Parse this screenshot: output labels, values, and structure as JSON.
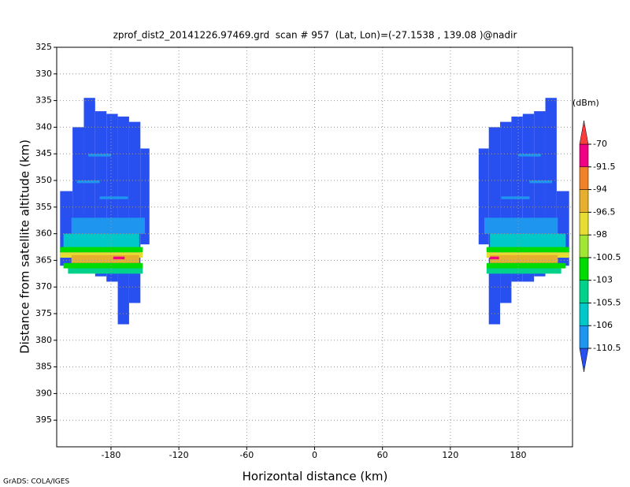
{
  "chart_data": {
    "type": "heatmap",
    "title": "zprof_dist2_20141226.97469.grd  scan # 957  (Lat, Lon)=(-27.1538 , 139.08 )@nadir",
    "xlabel": "Horizontal distance (km)",
    "ylabel": "Distance from satellite altitude (km)",
    "xlim": [
      -228,
      228
    ],
    "ylim": [
      325,
      400
    ],
    "xticks": [
      -180,
      -120,
      -60,
      0,
      60,
      120,
      180
    ],
    "yticks": [
      325,
      330,
      335,
      340,
      345,
      350,
      355,
      360,
      365,
      370,
      375,
      380,
      385,
      390,
      395
    ],
    "grid": true,
    "colorbar": {
      "label": "(dBm)",
      "levels": [
        -110.5,
        -106,
        -105.5,
        -103,
        -100.5,
        -98,
        -96.5,
        -94,
        -91.5,
        -70
      ],
      "colors": [
        "#2850f0",
        "#1e96f0",
        "#00c8c8",
        "#00d28c",
        "#00dc00",
        "#a0e632",
        "#e6dc32",
        "#e6af2d",
        "#f08228",
        "#f00082",
        "#fa3c3c"
      ]
    },
    "cells": [
      {
        "x0": -225,
        "x1": -214,
        "y0": 352,
        "y1": 366,
        "value": -112
      },
      {
        "x0": -214,
        "x1": -204,
        "y0": 340,
        "y1": 367,
        "value": -112
      },
      {
        "x0": -204,
        "x1": -194,
        "y0": 334.5,
        "y1": 367,
        "value": -112
      },
      {
        "x0": -194,
        "x1": -184,
        "y0": 337,
        "y1": 368,
        "value": -112
      },
      {
        "x0": -184,
        "x1": -174,
        "y0": 337.5,
        "y1": 369,
        "value": -112
      },
      {
        "x0": -174,
        "x1": -164,
        "y0": 338,
        "y1": 377,
        "value": -112
      },
      {
        "x0": -164,
        "x1": -154,
        "y0": 339,
        "y1": 373,
        "value": -112
      },
      {
        "x0": -154,
        "x1": -146,
        "y0": 344,
        "y1": 362,
        "value": -112
      },
      {
        "x0": -200,
        "x1": -180,
        "y0": 345,
        "y1": 345.5,
        "value": -108
      },
      {
        "x0": -210,
        "x1": -190,
        "y0": 350,
        "y1": 350.5,
        "value": -108
      },
      {
        "x0": -190,
        "x1": -165,
        "y0": 353,
        "y1": 353.5,
        "value": -108
      },
      {
        "x0": -215,
        "x1": -150,
        "y0": 357,
        "y1": 360,
        "value": -108
      },
      {
        "x0": -222,
        "x1": -155,
        "y0": 360,
        "y1": 362.5,
        "value": -105.8
      },
      {
        "x0": -225,
        "x1": -152,
        "y0": 362.5,
        "y1": 363.5,
        "value": -101.5
      },
      {
        "x0": -225,
        "x1": -152,
        "y0": 363.5,
        "y1": 364.5,
        "value": -97
      },
      {
        "x0": -215,
        "x1": -155,
        "y0": 364,
        "y1": 365.5,
        "value": -95
      },
      {
        "x0": -178,
        "x1": -168,
        "y0": 364.3,
        "y1": 364.8,
        "value": -85
      },
      {
        "x0": -222,
        "x1": -152,
        "y0": 365.5,
        "y1": 366.5,
        "value": -102
      },
      {
        "x0": -218,
        "x1": -152,
        "y0": 366.5,
        "y1": 367.5,
        "value": -104.5
      },
      {
        "x0": 214,
        "x1": 225,
        "y0": 352,
        "y1": 366,
        "value": -112
      },
      {
        "x0": 204,
        "x1": 214,
        "y0": 334.5,
        "y1": 367,
        "value": -112
      },
      {
        "x0": 194,
        "x1": 204,
        "y0": 337,
        "y1": 368,
        "value": -112
      },
      {
        "x0": 184,
        "x1": 194,
        "y0": 337.5,
        "y1": 369,
        "value": -112
      },
      {
        "x0": 174,
        "x1": 184,
        "y0": 338,
        "y1": 369,
        "value": -112
      },
      {
        "x0": 164,
        "x1": 174,
        "y0": 339,
        "y1": 373,
        "value": -112
      },
      {
        "x0": 154,
        "x1": 164,
        "y0": 340,
        "y1": 377,
        "value": -112
      },
      {
        "x0": 145,
        "x1": 154,
        "y0": 344,
        "y1": 362,
        "value": -112
      },
      {
        "x0": 180,
        "x1": 200,
        "y0": 345,
        "y1": 345.5,
        "value": -108
      },
      {
        "x0": 190,
        "x1": 210,
        "y0": 350,
        "y1": 350.5,
        "value": -108
      },
      {
        "x0": 165,
        "x1": 190,
        "y0": 353,
        "y1": 353.5,
        "value": -108
      },
      {
        "x0": 150,
        "x1": 215,
        "y0": 357,
        "y1": 360,
        "value": -108
      },
      {
        "x0": 155,
        "x1": 222,
        "y0": 360,
        "y1": 362.5,
        "value": -105.8
      },
      {
        "x0": 152,
        "x1": 225,
        "y0": 362.5,
        "y1": 363.5,
        "value": -101.5
      },
      {
        "x0": 152,
        "x1": 225,
        "y0": 363.5,
        "y1": 364.5,
        "value": -97
      },
      {
        "x0": 155,
        "x1": 215,
        "y0": 364,
        "y1": 365.5,
        "value": -95
      },
      {
        "x0": 155,
        "x1": 163,
        "y0": 364.3,
        "y1": 364.8,
        "value": -85
      },
      {
        "x0": 152,
        "x1": 222,
        "y0": 365.5,
        "y1": 366.5,
        "value": -102
      },
      {
        "x0": 152,
        "x1": 218,
        "y0": 366.5,
        "y1": 367.5,
        "value": -104.5
      }
    ]
  },
  "footer": "GrADS: COLA/IGES"
}
